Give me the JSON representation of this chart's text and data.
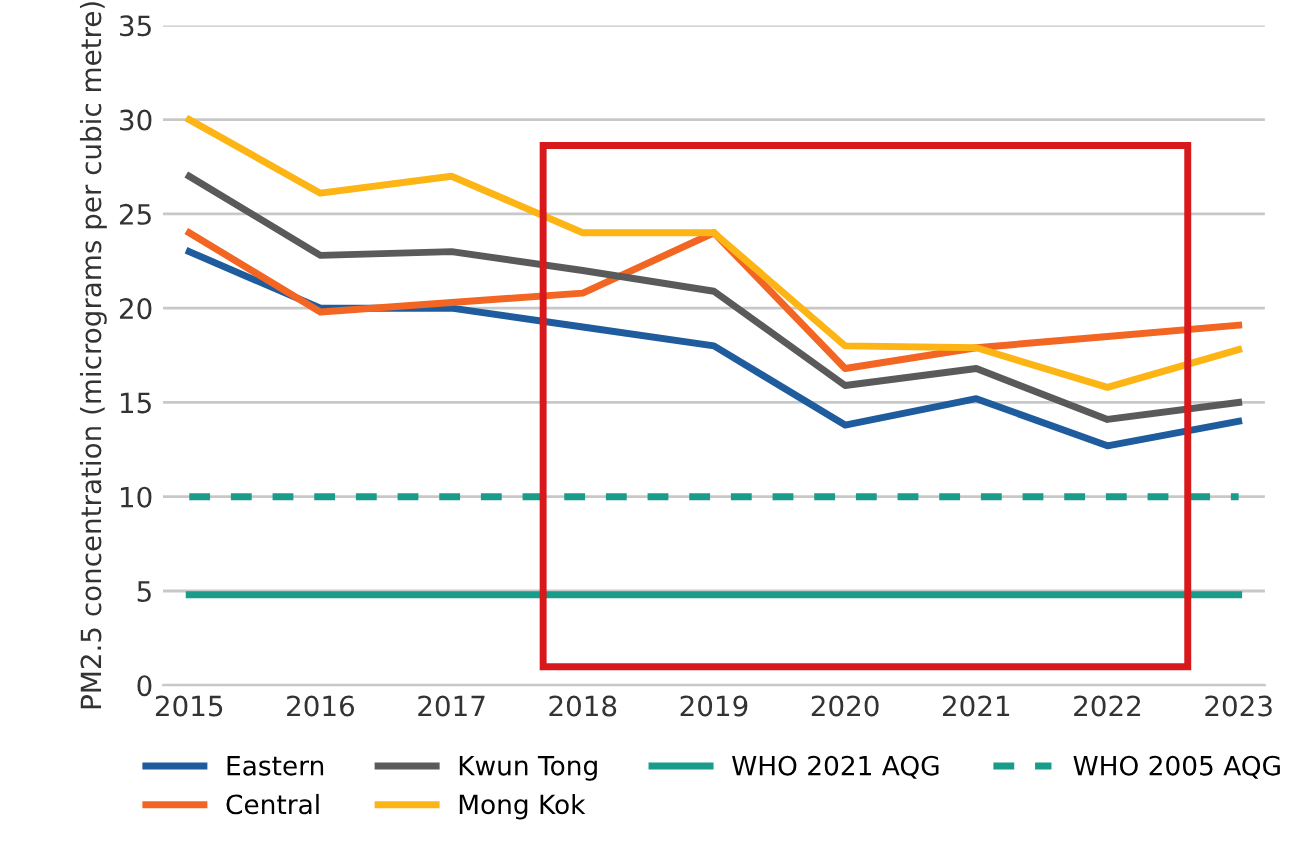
{
  "chart_data": {
    "type": "line",
    "ylabel": "PM2.5 concentration (micrograms per cubic metre)",
    "x": [
      2015,
      2016,
      2017,
      2018,
      2019,
      2020,
      2021,
      2022,
      2023
    ],
    "xlim": [
      2014.8,
      2023.2
    ],
    "xticks": [
      2015,
      2016,
      2017,
      2018,
      2019,
      2020,
      2021,
      2022,
      2023
    ],
    "ylim": [
      0,
      35
    ],
    "yticks": [
      0,
      5,
      10,
      15,
      20,
      25,
      30,
      35
    ],
    "grid": "y",
    "legend": "bottom",
    "marker": "none",
    "series": [
      {
        "name": "Eastern",
        "color": "#1f5c9e",
        "values": [
          23,
          20,
          20,
          19,
          18,
          13.8,
          15.2,
          12.7,
          14
        ]
      },
      {
        "name": "Central",
        "color": "#f26522",
        "values": [
          24,
          19.8,
          20.3,
          20.8,
          24,
          16.8,
          17.9,
          18.5,
          19.1
        ]
      },
      {
        "name": "Kwun Tong",
        "color": "#5a5a5a",
        "values": [
          27,
          22.8,
          23,
          22,
          20.9,
          15.9,
          16.8,
          14.1,
          15
        ]
      },
      {
        "name": "Mong Kok",
        "color": "#fdb515",
        "values": [
          30,
          26.1,
          27,
          24,
          24,
          18,
          17.9,
          15.8,
          17.8
        ]
      },
      {
        "name": "WHO 2021 AQG",
        "color": "#1a9c8a",
        "line_style": "solid",
        "values": [
          4.8,
          4.8,
          4.8,
          4.8,
          4.8,
          4.8,
          4.8,
          4.8,
          4.8
        ]
      },
      {
        "name": "WHO 2005 AQG",
        "color": "#1a9c8a",
        "line_style": "dashed",
        "values": [
          10,
          10,
          10,
          10,
          10,
          10,
          10,
          10,
          10
        ]
      }
    ]
  }
}
